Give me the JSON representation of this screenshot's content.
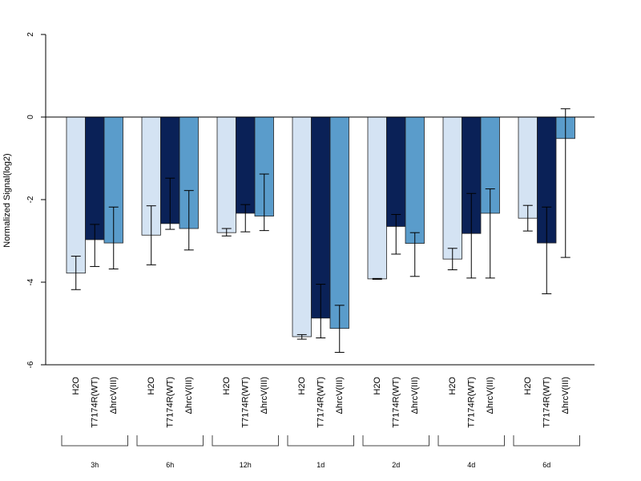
{
  "chart_data": {
    "type": "bar",
    "title": "",
    "xlabel": "",
    "ylabel": "Normalized Signal(log2)",
    "ylim": [
      -6,
      2
    ],
    "yticks": [
      2,
      0,
      -2,
      -4,
      -6
    ],
    "grid": false,
    "legend": "none",
    "series_labels": [
      "H2O",
      "T7174R(WT)",
      "ΔhrcV(III)"
    ],
    "series_colors": [
      "#d4e3f3",
      "#0a2157",
      "#5a9ccb"
    ],
    "groups": [
      {
        "label": "3h",
        "values": [
          -3.78,
          -2.97,
          -3.05
        ],
        "err_lo": [
          -4.18,
          -3.62,
          -3.68
        ],
        "err_hi": [
          -3.37,
          -2.6,
          -2.18
        ]
      },
      {
        "label": "6h",
        "values": [
          -2.86,
          -2.58,
          -2.7
        ],
        "err_lo": [
          -3.58,
          -2.72,
          -3.22
        ],
        "err_hi": [
          -2.15,
          -1.48,
          -1.78
        ]
      },
      {
        "label": "12h",
        "values": [
          -2.8,
          -2.33,
          -2.4
        ],
        "err_lo": [
          -2.88,
          -2.78,
          -2.75
        ],
        "err_hi": [
          -2.7,
          -2.12,
          -1.38
        ]
      },
      {
        "label": "1d",
        "values": [
          -5.32,
          -4.87,
          -5.12
        ],
        "err_lo": [
          -5.38,
          -5.35,
          -5.7
        ],
        "err_hi": [
          -5.27,
          -4.05,
          -4.56
        ]
      },
      {
        "label": "2d",
        "values": [
          -3.92,
          -2.65,
          -3.06
        ],
        "err_lo": [
          -3.93,
          -3.32,
          -3.86
        ],
        "err_hi": [
          -3.91,
          -2.36,
          -2.8
        ]
      },
      {
        "label": "4d",
        "values": [
          -3.44,
          -2.82,
          -2.33
        ],
        "err_lo": [
          -3.7,
          -3.9,
          -3.9
        ],
        "err_hi": [
          -3.18,
          -1.85,
          -1.74
        ]
      },
      {
        "label": "6d",
        "values": [
          -2.45,
          -3.05,
          -0.52
        ],
        "err_lo": [
          -2.76,
          -4.28,
          -3.4
        ],
        "err_hi": [
          -2.14,
          -2.18,
          0.2
        ]
      }
    ]
  }
}
